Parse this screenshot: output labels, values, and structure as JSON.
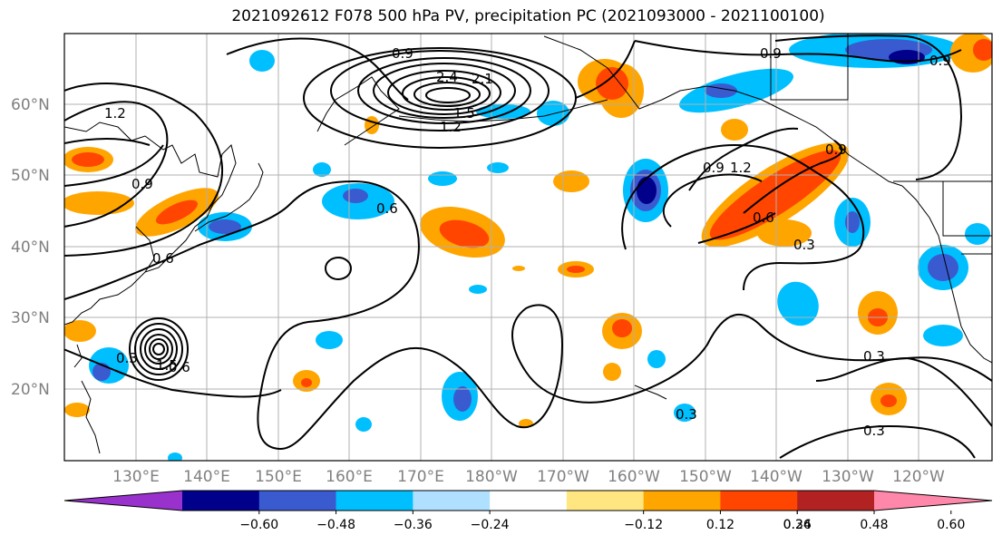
{
  "title": "2021092612 F078 500 hPa PV, precipitation PC (2021093000 - 2021100100)",
  "lat_labels": [
    "60°N",
    "50°N",
    "40°N",
    "30°N",
    "20°N"
  ],
  "lon_labels": [
    "130°E",
    "140°E",
    "150°E",
    "160°E",
    "170°E",
    "180°W",
    "170°W",
    "160°W",
    "150°W",
    "140°W",
    "130°W",
    "120°W"
  ],
  "colorbar": {
    "tick_labels": [
      "−0.60",
      "−0.48",
      "−0.36",
      "−0.24",
      "−0.12",
      "0.12",
      "0.24",
      "0.36",
      "0.48",
      "0.60"
    ],
    "colors": [
      "#9932cc",
      "#00008b",
      "#3a5bd0",
      "#00bfff",
      "#b0e0ff",
      "#ffffff",
      "#ffe680",
      "#ffa500",
      "#ff4500",
      "#b22222",
      "#ff88aa"
    ]
  },
  "contour_labels": [
    "0.9",
    "2.4",
    "2.1",
    "1.2",
    "1.5",
    "0.9",
    "1.2",
    "0.9",
    "0.6",
    "0.9",
    "1.2",
    "0.6",
    "0.3",
    "0.3",
    "0.3",
    "0.3",
    "0.6",
    "0.9",
    "0.6",
    "0.3",
    "1.5",
    "0.9"
  ],
  "colors": {
    "contour": "#000000",
    "grid": "#b0b0b0",
    "coast": "#000000"
  }
}
